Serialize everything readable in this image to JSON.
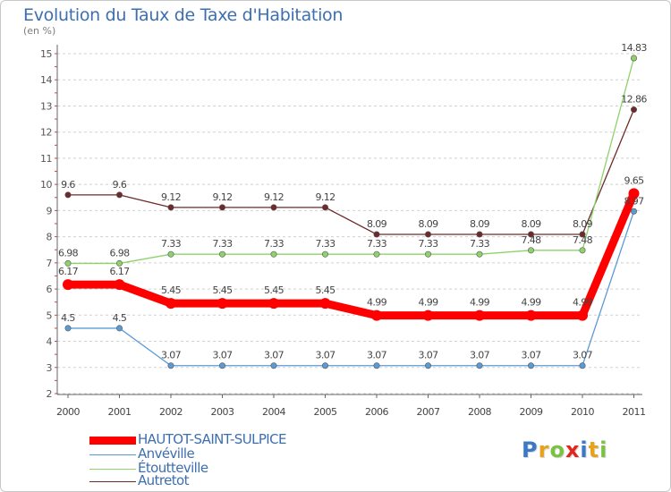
{
  "chart": {
    "title": "Evolution du Taux de Taxe d'Habitation",
    "subtitle": "(en %)"
  },
  "chart_data": {
    "type": "line",
    "title": "Evolution du Taux de Taxe d'Habitation",
    "subtitle": "(en %)",
    "xlabel": "",
    "ylabel": "",
    "categories": [
      "2000",
      "2001",
      "2002",
      "2003",
      "2004",
      "2005",
      "2006",
      "2007",
      "2008",
      "2009",
      "2010",
      "2011"
    ],
    "yticks": [
      "2",
      "3",
      "4",
      "5",
      "6",
      "7",
      "8",
      "9",
      "10",
      "11",
      "12",
      "13",
      "14",
      "15"
    ],
    "ylim": [
      2,
      15
    ],
    "grid": "horizontal dashed",
    "legend": "bottom-left",
    "series": [
      {
        "name": "Autretot",
        "color": "#6e2a2a",
        "values": [
          9.6,
          9.6,
          9.12,
          9.12,
          9.12,
          9.12,
          8.09,
          8.09,
          8.09,
          8.09,
          8.09,
          12.86
        ],
        "labels": [
          "9.6",
          "9.6",
          "9.12",
          "9.12",
          "9.12",
          "9.12",
          "8.09",
          "8.09",
          "8.09",
          "8.09",
          "8.09",
          "12.86"
        ]
      },
      {
        "name": "Étoutteville",
        "color": "#8ed26b",
        "values": [
          6.98,
          6.98,
          7.33,
          7.33,
          7.33,
          7.33,
          7.33,
          7.33,
          7.33,
          7.48,
          7.48,
          14.83
        ],
        "labels": [
          "6.98",
          "6.98",
          "7.33",
          "7.33",
          "7.33",
          "7.33",
          "7.33",
          "7.33",
          "7.33",
          "7.48",
          "7.48",
          "14.83"
        ]
      },
      {
        "name": "Anvéville",
        "color": "#5b9bd5",
        "values": [
          4.5,
          4.5,
          3.07,
          3.07,
          3.07,
          3.07,
          3.07,
          3.07,
          3.07,
          3.07,
          3.07,
          8.97
        ],
        "labels": [
          "4.5",
          "4.5",
          "3.07",
          "3.07",
          "3.07",
          "3.07",
          "3.07",
          "3.07",
          "3.07",
          "3.07",
          "3.07",
          "8.97"
        ]
      },
      {
        "name": "HAUTOT-SAINT-SULPICE",
        "color": "#ff0000",
        "values": [
          6.17,
          6.17,
          5.45,
          5.45,
          5.45,
          5.45,
          4.99,
          4.99,
          4.99,
          4.99,
          4.99,
          9.65
        ],
        "labels": [
          "6.17",
          "6.17",
          "5.45",
          "5.45",
          "5.45",
          "5.45",
          "4.99",
          "4.99",
          "4.99",
          "4.99",
          "4.99",
          "9.65"
        ]
      }
    ]
  },
  "legend": {
    "items": [
      {
        "label": "HAUTOT-SAINT-SULPICE",
        "color": "#ff0000"
      },
      {
        "label": "Anvéville",
        "color": "#5b9bd5"
      },
      {
        "label": "Étoutteville",
        "color": "#8ed26b"
      },
      {
        "label": "Autretot",
        "color": "#6e2a2a"
      }
    ]
  },
  "logo": {
    "letters": [
      "P",
      "r",
      "o",
      "x",
      "i",
      "t",
      "i"
    ],
    "colors": [
      "#3a78c8",
      "#e8a21b",
      "#7cc242",
      "#e3261c",
      "#3a78c8",
      "#e8a21b",
      "#7cc242"
    ]
  }
}
